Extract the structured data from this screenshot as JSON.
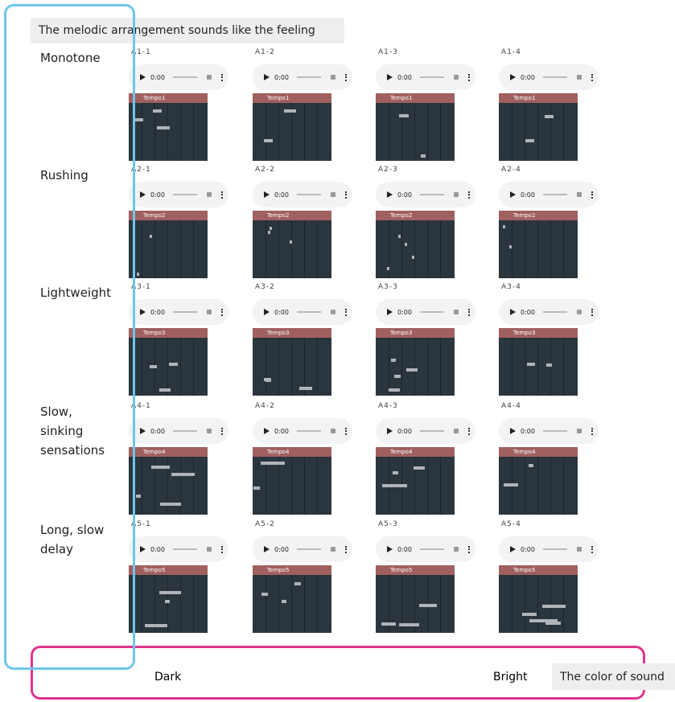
{
  "header": {
    "title": "The melodic arrangement sounds like the feeling"
  },
  "rows": [
    {
      "label": "Monotone",
      "cells": [
        {
          "id": "A1-1",
          "time": "0:00",
          "track": "Tempo1"
        },
        {
          "id": "A1-2",
          "time": "0:00",
          "track": "Tempo1"
        },
        {
          "id": "A1-3",
          "time": "0:00",
          "track": "Tempo1"
        },
        {
          "id": "A1-4",
          "time": "0:00",
          "track": "Tempo1"
        }
      ]
    },
    {
      "label": "Rushing",
      "cells": [
        {
          "id": "A2-1",
          "time": "0:00",
          "track": "Tempo2"
        },
        {
          "id": "A2-2",
          "time": "0:00",
          "track": "Tempo2"
        },
        {
          "id": "A2-3",
          "time": "0:00",
          "track": "Tempo2"
        },
        {
          "id": "A2-4",
          "time": "0:00",
          "track": "Tempo2"
        }
      ]
    },
    {
      "label": "Lightweight",
      "cells": [
        {
          "id": "A3-1",
          "time": "0:00",
          "track": "Tempo3"
        },
        {
          "id": "A3-2",
          "time": "0:00",
          "track": "Tempo3"
        },
        {
          "id": "A3-3",
          "time": "0:00",
          "track": "Tempo3"
        },
        {
          "id": "A3-4",
          "time": "0:00",
          "track": "Tempo3"
        }
      ]
    },
    {
      "label": "Slow, sinking sensations",
      "cells": [
        {
          "id": "A4-1",
          "time": "0:00",
          "track": "Tempo4"
        },
        {
          "id": "A4-2",
          "time": "0:00",
          "track": "Tempo4"
        },
        {
          "id": "A4-3",
          "time": "0:00",
          "track": "Tempo4"
        },
        {
          "id": "A4-4",
          "time": "0:00",
          "track": "Tempo4"
        }
      ]
    },
    {
      "label": "Long, slow delay",
      "cells": [
        {
          "id": "A5-1",
          "time": "0:00",
          "track": "Tempo5"
        },
        {
          "id": "A5-2",
          "time": "0:00",
          "track": "Tempo5"
        },
        {
          "id": "A5-3",
          "time": "0:00",
          "track": "Tempo5"
        },
        {
          "id": "A5-4",
          "time": "0:00",
          "track": "Tempo5"
        }
      ]
    }
  ],
  "footer": {
    "left": "Dark",
    "right": "Bright",
    "axis_title": "The color of sound"
  }
}
